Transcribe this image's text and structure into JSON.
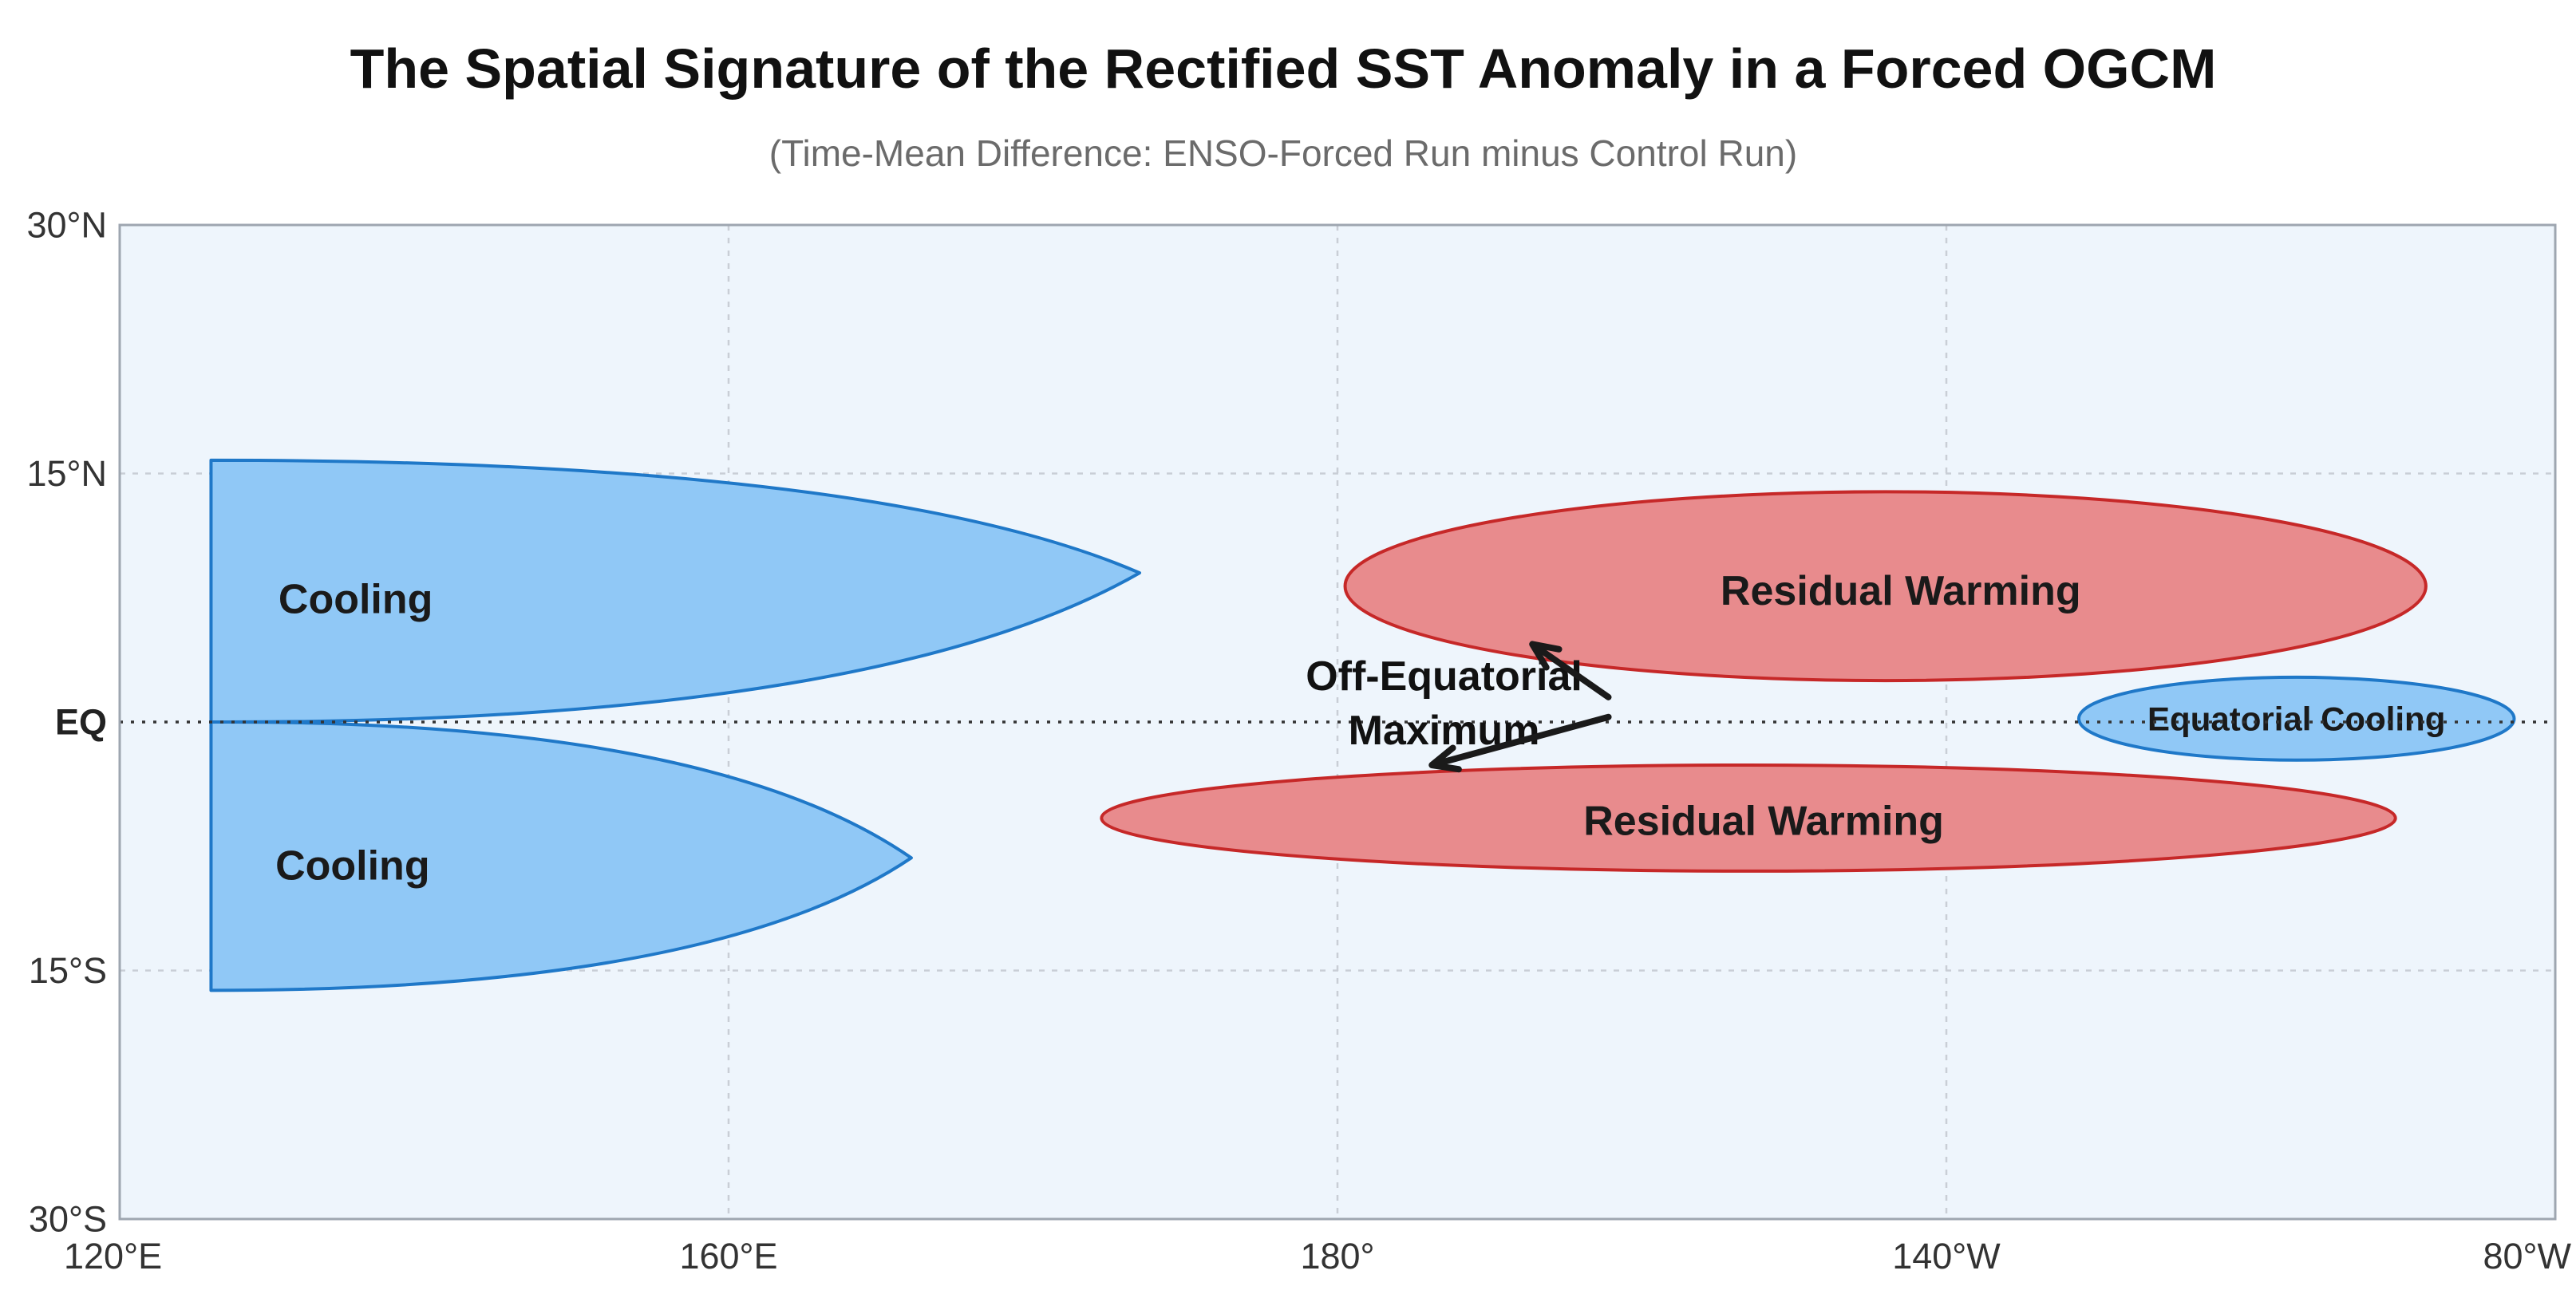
{
  "chart_data": {
    "type": "schematic-map",
    "title": "The Spatial Signature of the Rectified SST Anomaly in a Forced OGCM",
    "subtitle": "(Time-Mean Difference: ENSO-Forced Run minus Control Run)",
    "x_axis": {
      "range_lon_east": [
        120,
        280
      ],
      "ticks": [
        {
          "value": 120,
          "label": "120°E"
        },
        {
          "value": 160,
          "label": "160°E"
        },
        {
          "value": 200,
          "label": "180°"
        },
        {
          "value": 240,
          "label": "140°W"
        },
        {
          "value": 280,
          "label": "80°W"
        }
      ]
    },
    "y_axis": {
      "range_lat": [
        -30,
        30
      ],
      "ticks": [
        {
          "value": 30,
          "label": "30°N"
        },
        {
          "value": 15,
          "label": "15°N"
        },
        {
          "value": 0,
          "label": "EQ",
          "bold": true
        },
        {
          "value": -15,
          "label": "15°S"
        },
        {
          "value": -30,
          "label": "30°S"
        }
      ]
    },
    "grid": true,
    "equator_line": true,
    "colors": {
      "background": "#eef5fc",
      "cooling_fill": "#90c8f6",
      "cooling_edge": "#1f78c8",
      "warming_fill": "#e88b8d",
      "warming_edge": "#c62828",
      "grid": "#c9ced6",
      "frame": "#9ea6b0"
    },
    "regions": [
      {
        "label": "Cooling",
        "kind": "cooling",
        "shape": "half-lobe",
        "lon_west": 126,
        "lon_tip": 187,
        "lat_far": 15.8,
        "lat_tip": 9,
        "lat_base": 0,
        "label_lon": 135.5,
        "label_lat": 7.4
      },
      {
        "label": "Cooling",
        "kind": "cooling",
        "shape": "half-lobe",
        "lon_west": 126,
        "lon_tip": 172,
        "lat_far": -16.2,
        "lat_tip": -8.2,
        "lat_base": 0,
        "label_lon": 135.3,
        "label_lat": -8.7
      },
      {
        "label": "Residual Warming",
        "kind": "warming",
        "shape": "ellipse",
        "lon_center": 236,
        "lat_center": 8.2,
        "lon_radius": 35.5,
        "lat_radius": 5.7,
        "label_lon": 237,
        "label_lat": 7.9
      },
      {
        "label": "Residual Warming",
        "kind": "warming",
        "shape": "ellipse",
        "lon_center": 227,
        "lat_center": -5.8,
        "lon_radius": 42.5,
        "lat_radius": 3.2,
        "label_lon": 228,
        "label_lat": -6
      },
      {
        "label": "Equatorial Cooling",
        "kind": "cooling",
        "shape": "ellipse",
        "lon_center": 263,
        "lat_center": 0.2,
        "lon_radius": 14.3,
        "lat_radius": 2.5,
        "label_lon": 263,
        "label_lat": 0.2
      }
    ],
    "annotation": {
      "lines": [
        "Off-Equatorial",
        "Maximum"
      ],
      "lon": 207,
      "lat": 1.1,
      "arrows": [
        {
          "from_lon": 217.8,
          "from_lat": 1.5,
          "to_lon": 212.8,
          "to_lat": 4.7
        },
        {
          "from_lon": 217.8,
          "from_lat": 0.3,
          "to_lon": 206.2,
          "to_lat": -2.6
        }
      ]
    }
  }
}
